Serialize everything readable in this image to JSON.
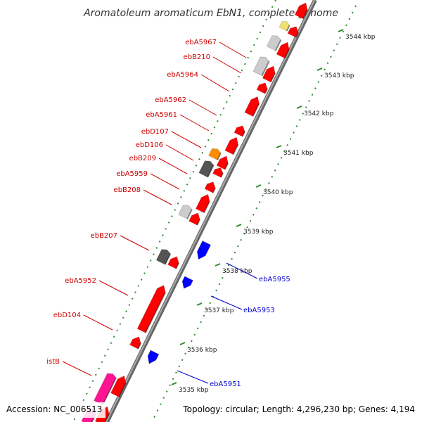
{
  "title": "Aromatoleum aromaticum EbN1, complete genome",
  "accession": "Accession: NC_006513",
  "topology": "Topology: circular; Length: 4,296,230 bp; Genes: 4,194",
  "colors": {
    "forward_gene": "#ff0000",
    "reverse_gene": "#0000ff",
    "orange_gene": "#ff8c00",
    "dark_gene": "#555555",
    "light_gene": "#cccccc",
    "yellow_gene": "#f0e070",
    "pink_gene": "#ff1493",
    "backbone": "#777777",
    "forward_label": "#cc0000",
    "reverse_label": "#0000cc",
    "ruler_dots": "#2e8b2e"
  },
  "ruler_ticks": [
    "3535 kbp",
    "3536 kbp",
    "3537 kbp",
    "3538 kbp",
    "3539 kbp",
    "3540 kbp",
    "3541 kbp",
    "3542 kbp",
    "3543 kbp",
    "3544 kbp"
  ],
  "forward_labels": [
    {
      "text": "ebA5967",
      "color": "forward_label"
    },
    {
      "text": "ebB210",
      "color": "forward_label"
    },
    {
      "text": "ebA5964",
      "color": "forward_label"
    },
    {
      "text": "ebA5962",
      "color": "forward_label"
    },
    {
      "text": "ebA5961",
      "color": "forward_label"
    },
    {
      "text": "ebD107",
      "color": "forward_label"
    },
    {
      "text": "ebD106",
      "color": "forward_label"
    },
    {
      "text": "ebB209",
      "color": "forward_label"
    },
    {
      "text": "ebA5959",
      "color": "forward_label"
    },
    {
      "text": "ebB208",
      "color": "forward_label"
    },
    {
      "text": "ebB207",
      "color": "forward_label"
    },
    {
      "text": "ebA5952",
      "color": "forward_label"
    },
    {
      "text": "ebD104",
      "color": "forward_label"
    },
    {
      "text": "istB",
      "color": "forward_label"
    }
  ],
  "reverse_labels": [
    {
      "text": "ebA5955",
      "color": "reverse_label"
    },
    {
      "text": "ebA5953",
      "color": "reverse_label"
    },
    {
      "text": "ebA5951",
      "color": "reverse_label"
    }
  ]
}
